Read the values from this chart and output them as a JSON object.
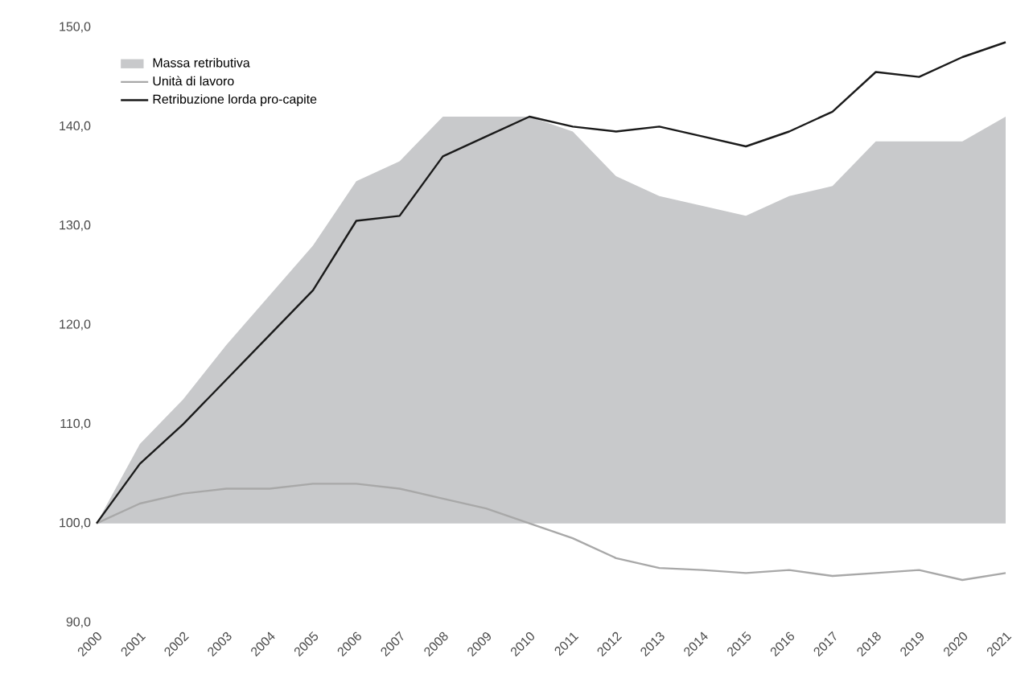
{
  "chart_data": {
    "type": "line",
    "categories": [
      "2000",
      "2001",
      "2002",
      "2003",
      "2004",
      "2005",
      "2006",
      "2007",
      "2008",
      "2009",
      "2010",
      "2011",
      "2012",
      "2013",
      "2014",
      "2015",
      "2016",
      "2017",
      "2018",
      "2019",
      "2020",
      "2021"
    ],
    "series": [
      {
        "name": "Massa retributiva",
        "type": "area",
        "color": "#c8c9cb",
        "values": [
          100,
          108,
          112.5,
          118,
          123,
          128,
          134.5,
          136.5,
          141,
          141,
          141,
          139.5,
          135,
          133,
          132,
          131,
          133,
          134,
          138.5,
          138.5,
          138.5,
          141
        ]
      },
      {
        "name": "Unità di lavoro",
        "color": "#a8a8a8",
        "values": [
          100,
          102,
          103,
          103.5,
          103.5,
          104,
          104,
          103.5,
          102.5,
          101.5,
          100,
          98.5,
          96.5,
          95.5,
          95.3,
          95,
          95.3,
          94.7,
          95,
          95.3,
          94.3,
          95
        ]
      },
      {
        "name": "Retribuzione lorda pro-capite",
        "color": "#1a1a1a",
        "values": [
          100,
          106,
          110,
          114.5,
          119,
          123.5,
          130.5,
          131,
          137,
          139,
          141,
          140,
          139.5,
          140,
          139,
          138,
          139.5,
          141.5,
          145.5,
          145,
          147,
          148.5
        ]
      }
    ],
    "ylim": [
      90,
      150
    ],
    "yticks": [
      {
        "value": 90,
        "label": "90,0"
      },
      {
        "value": 100,
        "label": "100,0"
      },
      {
        "value": 110,
        "label": "110,0"
      },
      {
        "value": 120,
        "label": "120,0"
      },
      {
        "value": 130,
        "label": "130,0"
      },
      {
        "value": 140,
        "label": "140,0"
      },
      {
        "value": 150,
        "label": "150,0"
      }
    ],
    "legend": "top left",
    "grid": false
  }
}
